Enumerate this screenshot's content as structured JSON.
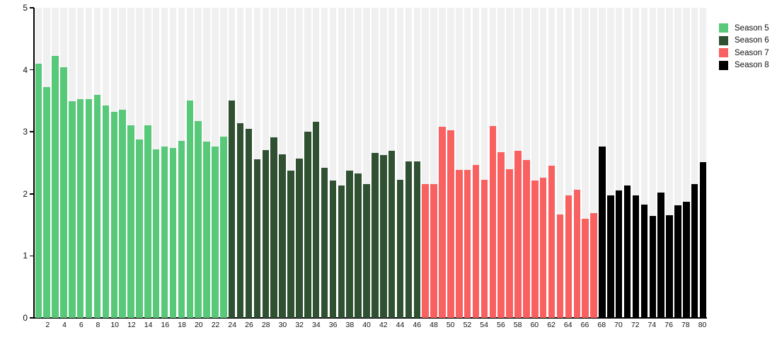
{
  "chart_data": {
    "type": "bar",
    "title": "",
    "xlabel": "",
    "ylabel": "",
    "ylim": [
      0,
      5
    ],
    "yticks": [
      0,
      1,
      2,
      3,
      4,
      5
    ],
    "xticks": [
      2,
      4,
      6,
      8,
      10,
      12,
      14,
      16,
      18,
      20,
      22,
      24,
      26,
      28,
      30,
      32,
      34,
      36,
      38,
      40,
      42,
      44,
      46,
      48,
      50,
      52,
      54,
      56,
      58,
      60,
      62,
      64,
      66,
      68,
      70,
      72,
      74,
      76,
      78,
      80
    ],
    "bar_count": 80,
    "grid": "vertical-stripe-backdrops",
    "legend_position": "top-right",
    "colors": {
      "background": "#ffffff",
      "stripe": "#f0f0f0",
      "axis": "#000000",
      "text": "#111111"
    },
    "series": [
      {
        "name": "Season 5",
        "color": "#58c879",
        "episode_start": 1,
        "episode_end": 23,
        "values": [
          4.1,
          3.72,
          4.22,
          4.04,
          3.49,
          3.53,
          3.53,
          3.6,
          3.42,
          3.32,
          3.36,
          3.11,
          2.88,
          3.1,
          2.72,
          2.76,
          2.74,
          2.85,
          3.5,
          3.17,
          2.84,
          2.76,
          2.92
        ]
      },
      {
        "name": "Season 6",
        "color": "#2f5132",
        "episode_start": 24,
        "episode_end": 46,
        "values": [
          3.5,
          3.14,
          3.05,
          2.56,
          2.71,
          2.91,
          2.64,
          2.37,
          2.57,
          3.0,
          3.16,
          2.42,
          2.21,
          2.14,
          2.37,
          2.33,
          2.16,
          2.66,
          2.63,
          2.69,
          2.23,
          2.52,
          2.52
        ]
      },
      {
        "name": "Season 7",
        "color": "#f96060",
        "episode_start": 47,
        "episode_end": 67,
        "values": [
          2.16,
          2.16,
          3.08,
          3.02,
          2.39,
          2.39,
          2.47,
          2.23,
          3.09,
          2.67,
          2.4,
          2.69,
          2.55,
          2.22,
          2.26,
          2.45,
          1.67,
          1.98,
          2.07,
          1.6,
          1.69
        ]
      },
      {
        "name": "Season 8",
        "color": "#000000",
        "episode_start": 68,
        "episode_end": 80,
        "values": [
          2.76,
          1.97,
          2.05,
          2.14,
          1.97,
          1.83,
          1.64,
          2.02,
          1.66,
          1.81,
          1.87,
          2.16,
          2.51
        ]
      }
    ]
  }
}
